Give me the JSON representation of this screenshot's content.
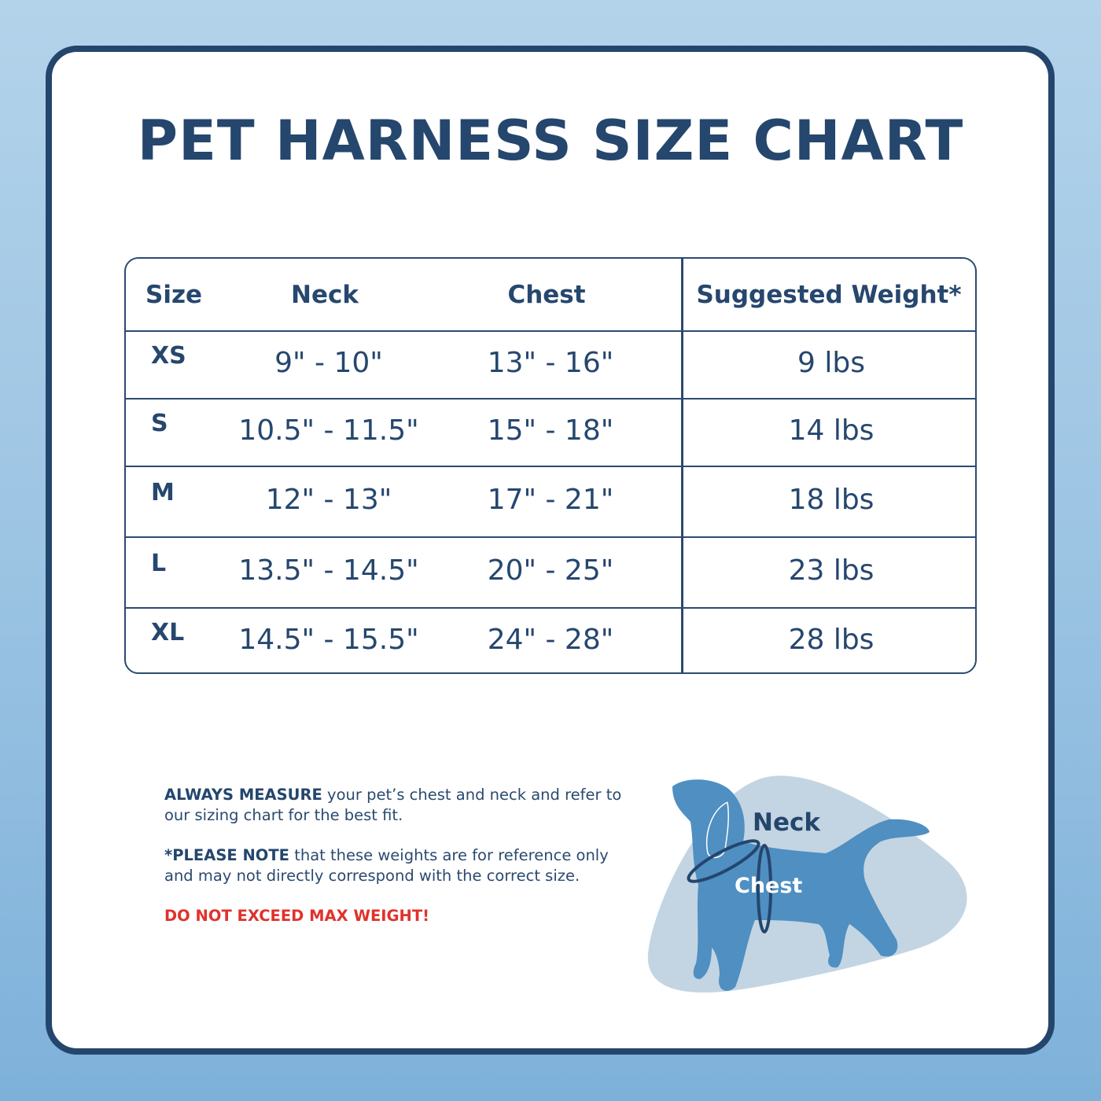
{
  "title": "PET HARNESS SIZE CHART",
  "table": {
    "headers": [
      "Size",
      "Neck",
      "Chest",
      "Suggested Weight*"
    ],
    "rows": [
      {
        "size": "XS",
        "neck": "9\" - 10\"",
        "chest": "13\" - 16\"",
        "weight": "9 lbs"
      },
      {
        "size": "S",
        "neck": "10.5\" - 11.5\"",
        "chest": "15\" - 18\"",
        "weight": "14 lbs"
      },
      {
        "size": "M",
        "neck": "12\" - 13\"",
        "chest": "17\" - 21\"",
        "weight": "18 lbs"
      },
      {
        "size": "L",
        "neck": "13.5\" - 14.5\"",
        "chest": "20\" - 25\"",
        "weight": "23 lbs"
      },
      {
        "size": "XL",
        "neck": "14.5\" - 15.5\"",
        "chest": "24\" - 28\"",
        "weight": "28 lbs"
      }
    ]
  },
  "notes": {
    "measure_bold": "ALWAYS MEASURE",
    "measure_text": " your pet’s chest and neck and refer to our sizing chart for the best fit.",
    "note_bold": "*PLEASE NOTE",
    "note_text": " that these weights are for reference only and may not directly correspond with the correct size.",
    "warning": "DO NOT EXCEED MAX WEIGHT!"
  },
  "illustration": {
    "neck_label": "Neck",
    "chest_label": "Chest"
  },
  "colors": {
    "navy": "#24466d",
    "dog": "#4f8fc2",
    "blob": "#c3d5e2",
    "warning": "#e0322c"
  }
}
